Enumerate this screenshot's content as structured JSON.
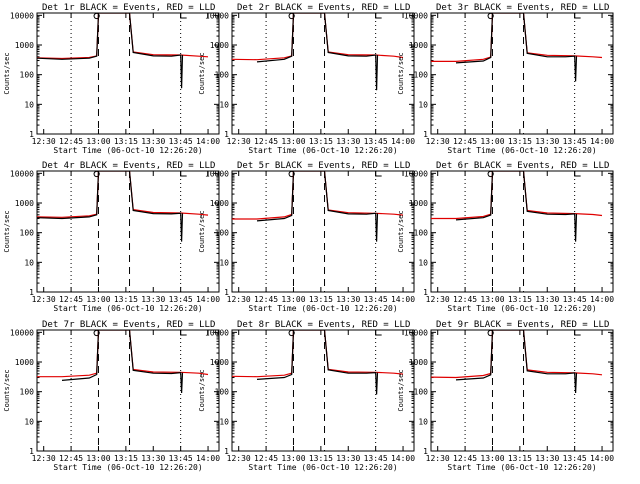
{
  "colors": {
    "events": "#000000",
    "lld": "#e00000",
    "frame": "#000000",
    "background": "#ffffff"
  },
  "chart_data": [
    {
      "type": "line",
      "title": "Det 1r BLACK = Events, RED = LLD",
      "xlabel": "Start Time (06-Oct-10 12:26:20)",
      "ylabel": "Counts/sec",
      "xticks": [
        "12:30",
        "12:45",
        "13:00",
        "13:15",
        "13:30",
        "13:45",
        "14:00"
      ],
      "yticks": [
        "1",
        "10",
        "100",
        "1000",
        "10000"
      ],
      "ylim": [
        1,
        12000
      ],
      "yscale": "log",
      "grid": false,
      "series": [
        {
          "color": "#000000",
          "x": [
            "12:26:20",
            "12:40",
            "12:55",
            "12:59",
            "13:00",
            "13:10",
            "13:17",
            "13:19",
            "13:30",
            "13:40",
            "13:45",
            "13:45:30",
            "13:46"
          ],
          "y": [
            360,
            330,
            360,
            420,
            12000,
            12000,
            12000,
            560,
            430,
            420,
            460,
            35,
            460
          ]
        },
        {
          "color": "#e00000",
          "x": [
            "12:26:20",
            "12:40",
            "12:55",
            "12:59",
            "13:00",
            "13:10",
            "13:17",
            "13:19",
            "13:30",
            "13:45",
            "13:55",
            "14:00"
          ],
          "y": [
            370,
            350,
            380,
            430,
            12000,
            12000,
            12000,
            580,
            470,
            460,
            420,
            400
          ]
        }
      ]
    },
    {
      "type": "line",
      "title": "Det 2r BLACK = Events, RED = LLD",
      "xlabel": "Start Time (06-Oct-10 12:26:20)",
      "ylabel": "Counts/sec",
      "xticks": [
        "12:30",
        "12:45",
        "13:00",
        "13:15",
        "13:30",
        "13:45",
        "14:00"
      ],
      "yticks": [
        "1",
        "10",
        "100",
        "1000",
        "10000"
      ],
      "ylim": [
        1,
        12000
      ],
      "yscale": "log",
      "grid": false,
      "series": [
        {
          "color": "#000000",
          "x": [
            "12:40",
            "12:55",
            "12:59",
            "13:00",
            "13:10",
            "13:17",
            "13:19",
            "13:30",
            "13:40",
            "13:45",
            "13:45:30",
            "13:46"
          ],
          "y": [
            270,
            330,
            420,
            12000,
            12000,
            12000,
            560,
            430,
            420,
            460,
            30,
            460
          ]
        },
        {
          "color": "#e00000",
          "x": [
            "12:26:20",
            "12:40",
            "12:55",
            "12:59",
            "13:00",
            "13:10",
            "13:17",
            "13:19",
            "13:30",
            "13:45",
            "13:55",
            "14:00"
          ],
          "y": [
            330,
            320,
            370,
            430,
            12000,
            12000,
            12000,
            580,
            470,
            460,
            420,
            380
          ]
        }
      ]
    },
    {
      "type": "line",
      "title": "Det 3r BLACK = Events, RED = LLD",
      "xlabel": "Start Time (06-Oct-10 12:26:20)",
      "ylabel": "Counts/sec",
      "xticks": [
        "12:30",
        "12:45",
        "13:00",
        "13:15",
        "13:30",
        "13:45",
        "14:00"
      ],
      "yticks": [
        "1",
        "10",
        "100",
        "1000",
        "10000"
      ],
      "ylim": [
        1,
        12000
      ],
      "yscale": "log",
      "grid": false,
      "series": [
        {
          "color": "#000000",
          "x": [
            "12:40",
            "12:55",
            "12:59",
            "13:00",
            "13:10",
            "13:17",
            "13:19",
            "13:30",
            "13:40",
            "13:45",
            "13:45:30",
            "13:46"
          ],
          "y": [
            250,
            290,
            380,
            12000,
            12000,
            12000,
            520,
            400,
            400,
            420,
            60,
            420
          ]
        },
        {
          "color": "#e00000",
          "x": [
            "12:26:20",
            "12:40",
            "12:55",
            "12:59",
            "13:00",
            "13:10",
            "13:17",
            "13:19",
            "13:30",
            "13:45",
            "13:55",
            "14:00"
          ],
          "y": [
            280,
            280,
            330,
            390,
            12000,
            12000,
            12000,
            540,
            450,
            430,
            400,
            380
          ]
        }
      ]
    },
    {
      "type": "line",
      "title": "Det 4r BLACK = Events, RED = LLD",
      "xlabel": "Start Time (06-Oct-10 12:26:20)",
      "ylabel": "Counts/sec",
      "xticks": [
        "12:30",
        "12:45",
        "13:00",
        "13:15",
        "13:30",
        "13:45",
        "14:00"
      ],
      "yticks": [
        "1",
        "10",
        "100",
        "1000",
        "10000"
      ],
      "ylim": [
        1,
        12000
      ],
      "yscale": "log",
      "grid": false,
      "series": [
        {
          "color": "#000000",
          "x": [
            "12:26:20",
            "12:40",
            "12:55",
            "12:59",
            "13:00",
            "13:10",
            "13:17",
            "13:19",
            "13:30",
            "13:40",
            "13:45",
            "13:45:30",
            "13:46"
          ],
          "y": [
            320,
            300,
            340,
            400,
            12000,
            12000,
            12000,
            560,
            440,
            430,
            450,
            50,
            450
          ]
        },
        {
          "color": "#e00000",
          "x": [
            "12:26:20",
            "12:40",
            "12:55",
            "12:59",
            "13:00",
            "13:10",
            "13:17",
            "13:19",
            "13:30",
            "13:45",
            "13:55",
            "14:00"
          ],
          "y": [
            340,
            330,
            370,
            420,
            12000,
            12000,
            12000,
            600,
            480,
            460,
            420,
            390
          ]
        }
      ]
    },
    {
      "type": "line",
      "title": "Det 5r BLACK = Events, RED = LLD",
      "xlabel": "Start Time (06-Oct-10 12:26:20)",
      "ylabel": "Counts/sec",
      "xticks": [
        "12:30",
        "12:45",
        "13:00",
        "13:15",
        "13:30",
        "13:45",
        "14:00"
      ],
      "yticks": [
        "1",
        "10",
        "100",
        "1000",
        "10000"
      ],
      "ylim": [
        1,
        12000
      ],
      "yscale": "log",
      "grid": false,
      "series": [
        {
          "color": "#000000",
          "x": [
            "12:40",
            "12:55",
            "12:59",
            "13:00",
            "13:10",
            "13:17",
            "13:19",
            "13:30",
            "13:40",
            "13:45",
            "13:45:30",
            "13:46"
          ],
          "y": [
            250,
            300,
            380,
            12000,
            12000,
            12000,
            560,
            430,
            420,
            450,
            50,
            450
          ]
        },
        {
          "color": "#e00000",
          "x": [
            "12:26:20",
            "12:40",
            "12:55",
            "12:59",
            "13:00",
            "13:10",
            "13:17",
            "13:19",
            "13:30",
            "13:45",
            "13:55",
            "14:00"
          ],
          "y": [
            290,
            290,
            340,
            410,
            12000,
            12000,
            12000,
            580,
            470,
            450,
            420,
            390
          ]
        }
      ]
    },
    {
      "type": "line",
      "title": "Det 6r BLACK = Events, RED = LLD",
      "xlabel": "Start Time (06-Oct-10 12:26:20)",
      "ylabel": "Counts/sec",
      "xticks": [
        "12:30",
        "12:45",
        "13:00",
        "13:15",
        "13:30",
        "13:45",
        "14:00"
      ],
      "yticks": [
        "1",
        "10",
        "100",
        "1000",
        "10000"
      ],
      "ylim": [
        1,
        12000
      ],
      "yscale": "log",
      "grid": false,
      "series": [
        {
          "color": "#000000",
          "x": [
            "12:40",
            "12:55",
            "12:59",
            "13:00",
            "13:10",
            "13:17",
            "13:19",
            "13:30",
            "13:40",
            "13:45",
            "13:45:30",
            "13:46"
          ],
          "y": [
            270,
            320,
            390,
            12000,
            12000,
            12000,
            520,
            420,
            410,
            430,
            50,
            430
          ]
        },
        {
          "color": "#e00000",
          "x": [
            "12:26:20",
            "12:40",
            "12:55",
            "12:59",
            "13:00",
            "13:10",
            "13:17",
            "13:19",
            "13:30",
            "13:45",
            "13:55",
            "14:00"
          ],
          "y": [
            300,
            300,
            350,
            420,
            12000,
            12000,
            12000,
            560,
            460,
            440,
            410,
            380
          ]
        }
      ]
    },
    {
      "type": "line",
      "title": "Det 7r BLACK = Events, RED = LLD",
      "xlabel": "Start Time (06-Oct-10 12:26:20)",
      "ylabel": "Counts/sec",
      "xticks": [
        "12:30",
        "12:45",
        "13:00",
        "13:15",
        "13:30",
        "13:45",
        "14:00"
      ],
      "yticks": [
        "1",
        "10",
        "100",
        "1000",
        "10000"
      ],
      "ylim": [
        1,
        12000
      ],
      "yscale": "log",
      "grid": false,
      "series": [
        {
          "color": "#000000",
          "x": [
            "12:40",
            "12:55",
            "12:59",
            "13:00",
            "13:10",
            "13:17",
            "13:19",
            "13:30",
            "13:40",
            "13:45",
            "13:45:30",
            "13:46"
          ],
          "y": [
            240,
            290,
            380,
            12000,
            12000,
            12000,
            520,
            420,
            410,
            440,
            90,
            440
          ]
        },
        {
          "color": "#e00000",
          "x": [
            "12:26:20",
            "12:40",
            "12:55",
            "12:59",
            "13:00",
            "13:10",
            "13:17",
            "13:19",
            "13:30",
            "13:45",
            "13:55",
            "14:00"
          ],
          "y": [
            320,
            320,
            360,
            420,
            12000,
            12000,
            12000,
            560,
            460,
            450,
            420,
            380
          ]
        }
      ]
    },
    {
      "type": "line",
      "title": "Det 8r BLACK = Events, RED = LLD",
      "xlabel": "Start Time (06-Oct-10 12:26:20)",
      "ylabel": "Counts/sec",
      "xticks": [
        "12:30",
        "12:45",
        "13:00",
        "13:15",
        "13:30",
        "13:45",
        "14:00"
      ],
      "yticks": [
        "1",
        "10",
        "100",
        "1000",
        "10000"
      ],
      "ylim": [
        1,
        12000
      ],
      "yscale": "log",
      "grid": false,
      "series": [
        {
          "color": "#000000",
          "x": [
            "12:40",
            "12:55",
            "12:59",
            "13:00",
            "13:10",
            "13:17",
            "13:19",
            "13:30",
            "13:40",
            "13:45",
            "13:45:30",
            "13:46"
          ],
          "y": [
            260,
            300,
            380,
            12000,
            12000,
            12000,
            540,
            420,
            420,
            440,
            80,
            440
          ]
        },
        {
          "color": "#e00000",
          "x": [
            "12:26:20",
            "12:40",
            "12:55",
            "12:59",
            "13:00",
            "13:10",
            "13:17",
            "13:19",
            "13:30",
            "13:45",
            "13:55",
            "14:00"
          ],
          "y": [
            330,
            320,
            360,
            420,
            12000,
            12000,
            12000,
            570,
            460,
            450,
            420,
            390
          ]
        }
      ]
    },
    {
      "type": "line",
      "title": "Det 9r BLACK = Events, RED = LLD",
      "xlabel": "Start Time (06-Oct-10 12:26:20)",
      "ylabel": "Counts/sec",
      "xticks": [
        "12:30",
        "12:45",
        "13:00",
        "13:15",
        "13:30",
        "13:45",
        "14:00"
      ],
      "yticks": [
        "1",
        "10",
        "100",
        "1000",
        "10000"
      ],
      "ylim": [
        1,
        12000
      ],
      "yscale": "log",
      "grid": false,
      "series": [
        {
          "color": "#000000",
          "x": [
            "12:40",
            "12:55",
            "12:59",
            "13:00",
            "13:10",
            "13:17",
            "13:19",
            "13:30",
            "13:40",
            "13:45",
            "13:45:30",
            "13:46"
          ],
          "y": [
            250,
            290,
            370,
            12000,
            12000,
            12000,
            500,
            400,
            400,
            430,
            90,
            430
          ]
        },
        {
          "color": "#e00000",
          "x": [
            "12:26:20",
            "12:40",
            "12:55",
            "12:59",
            "13:00",
            "13:10",
            "13:17",
            "13:19",
            "13:30",
            "13:45",
            "13:55",
            "14:00"
          ],
          "y": [
            310,
            300,
            350,
            410,
            12000,
            12000,
            12000,
            540,
            450,
            430,
            400,
            370
          ]
        }
      ]
    }
  ]
}
